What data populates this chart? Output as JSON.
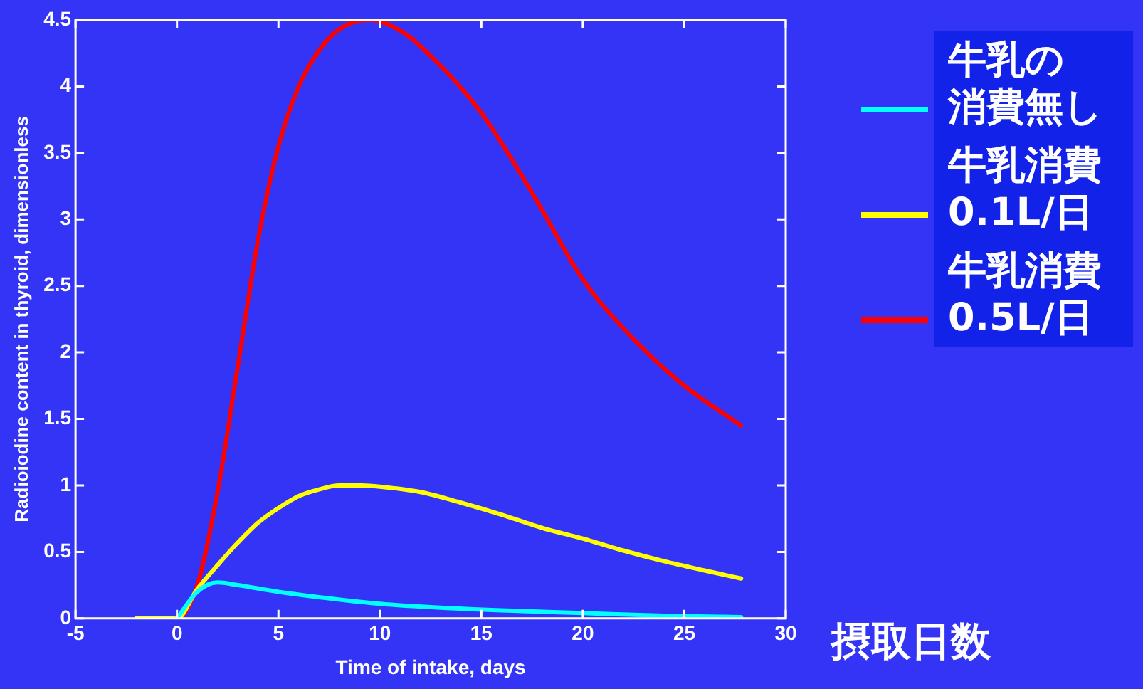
{
  "chart_data": {
    "type": "line",
    "xlabel": "Time of intake, days",
    "ylabel": "Radioiodine content in thyroid, dimensionless",
    "annotations": [
      "摂取日数"
    ],
    "xlim": [
      -5,
      30
    ],
    "xticks": [
      -5,
      0,
      5,
      10,
      15,
      20,
      25,
      30
    ],
    "ylim": [
      0,
      4.5
    ],
    "yticks": [
      0,
      0.5,
      1,
      1.5,
      2,
      2.5,
      3,
      3.5,
      4,
      4.5
    ],
    "grid": false,
    "legend": "right",
    "series": [
      {
        "name": "牛乳の消費無し",
        "color": "#00ffff",
        "x": [
          0,
          1,
          2,
          3,
          5,
          7,
          10,
          13,
          16,
          20,
          24,
          27.8
        ],
        "values": [
          0,
          0.2,
          0.27,
          0.25,
          0.2,
          0.16,
          0.11,
          0.08,
          0.06,
          0.04,
          0.02,
          0.01
        ]
      },
      {
        "name": "牛乳消費\n0.1L/日",
        "color": "#ffff00",
        "x": [
          -2,
          0,
          1,
          2,
          3,
          4,
          5,
          6,
          7,
          8,
          9,
          10,
          12,
          14,
          16,
          18,
          20,
          22,
          24,
          26,
          27.8
        ],
        "values": [
          0,
          0,
          0.22,
          0.4,
          0.57,
          0.72,
          0.83,
          0.92,
          0.97,
          1.0,
          1.0,
          0.99,
          0.95,
          0.87,
          0.78,
          0.68,
          0.6,
          0.51,
          0.43,
          0.36,
          0.3
        ]
      },
      {
        "name": "牛乳消費\n0.5L/日",
        "color": "#ff0000",
        "x": [
          -2,
          0,
          1,
          2,
          3,
          4,
          5,
          6,
          7,
          8,
          9.5,
          11,
          12.5,
          15,
          17.5,
          20,
          22.5,
          25,
          27.8
        ],
        "values": [
          0,
          0,
          0.25,
          0.95,
          1.9,
          2.85,
          3.55,
          4.0,
          4.27,
          4.43,
          4.5,
          4.42,
          4.23,
          3.8,
          3.2,
          2.55,
          2.1,
          1.75,
          1.45
        ]
      }
    ]
  }
}
